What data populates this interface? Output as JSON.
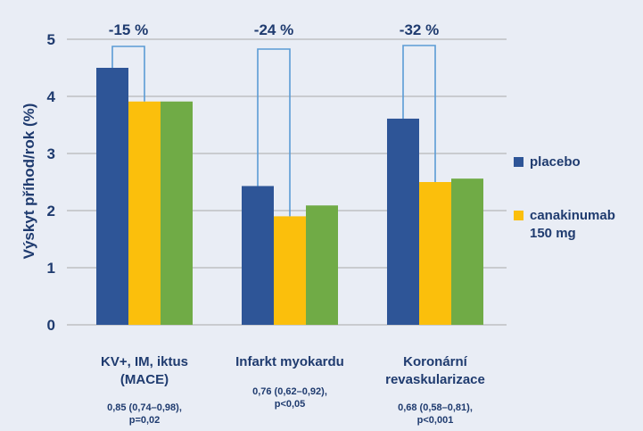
{
  "chart_data": {
    "type": "bar",
    "ylabel": "Výskyt příhod/rok (%)",
    "ylim": [
      0,
      5
    ],
    "yticks": [
      "0",
      "1",
      "2",
      "3",
      "4",
      "5"
    ],
    "grid": true,
    "legend_position": "right",
    "categories": [
      {
        "label_lines": [
          "KV+, IM, iktus",
          "(MACE)"
        ],
        "stat_lines": [
          "0,85 (0,74–0,98),",
          "p=0,02"
        ]
      },
      {
        "label_lines": [
          "Infarkt myokardu"
        ],
        "stat_lines": [
          "0,76 (0,62–0,92),",
          "p<0,05"
        ]
      },
      {
        "label_lines": [
          "Koronární",
          "revaskularizace"
        ],
        "stat_lines": [
          "0,68 (0,58–0,81),",
          "p<0,001"
        ]
      }
    ],
    "series": [
      {
        "name": "placebo",
        "color": "#2e5597",
        "values": [
          4.5,
          2.43,
          3.61
        ]
      },
      {
        "name": "canakinumab 150 mg",
        "legend_lines": [
          "canakinumab",
          "150 mg"
        ],
        "color": "#fbbf0c",
        "values": [
          3.91,
          1.9,
          2.5
        ]
      },
      {
        "color": "#70ab46",
        "values": [
          3.91,
          2.09,
          2.56
        ]
      }
    ],
    "annotations": [
      {
        "text": "-15 %",
        "category": 0
      },
      {
        "text": "-24 %",
        "category": 1
      },
      {
        "text": "-32 %",
        "category": 2
      }
    ],
    "annotation_line_color": "#5b9bd5"
  }
}
